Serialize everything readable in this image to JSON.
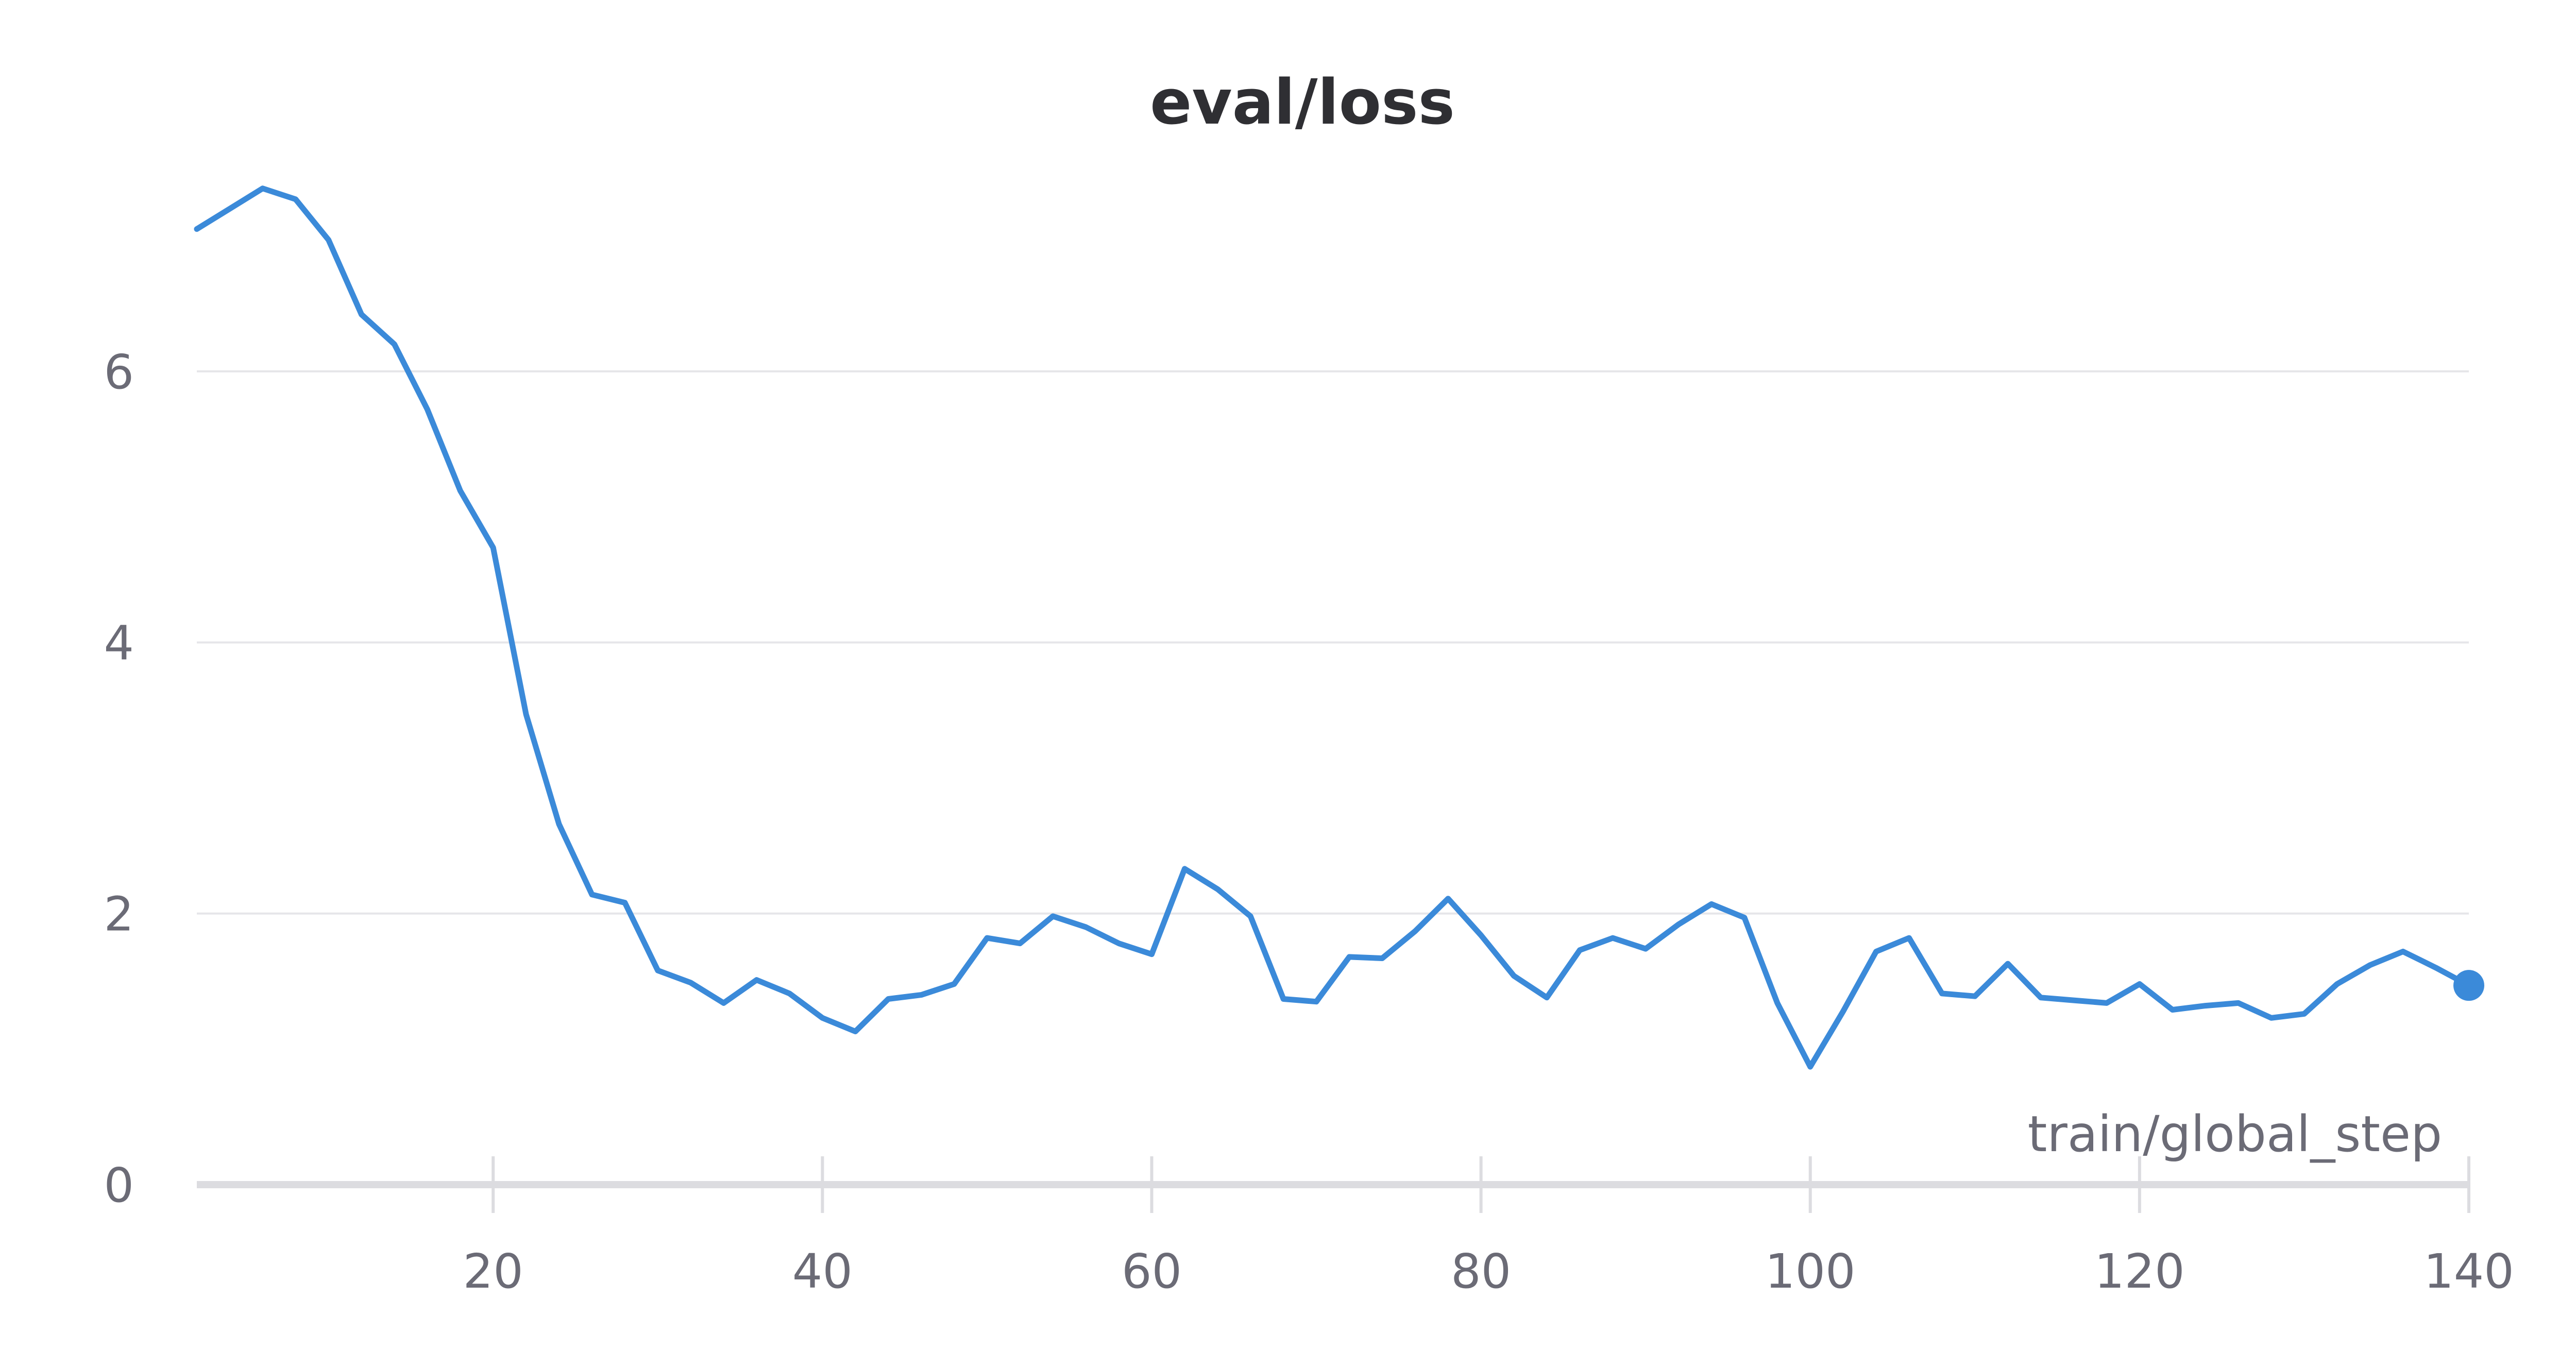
{
  "chart_data": {
    "type": "line",
    "title": "eval/loss",
    "xlabel": "train/global_step",
    "ylabel": "",
    "xlim": [
      2,
      140
    ],
    "ylim": [
      0,
      7.6
    ],
    "x_ticks": [
      20,
      40,
      60,
      80,
      100,
      120,
      140
    ],
    "y_ticks": [
      0,
      2,
      4,
      6
    ],
    "grid": true,
    "last_point_marker": true,
    "line_color": "#3b8ad9",
    "series": [
      {
        "x": [
          2,
          4,
          6,
          8,
          10,
          12,
          14,
          16,
          18,
          20,
          22,
          24,
          26,
          28,
          30,
          32,
          34,
          36,
          38,
          40,
          42,
          44,
          46,
          48,
          50,
          52,
          54,
          56,
          58,
          60,
          62,
          64,
          66,
          68,
          70,
          72,
          74,
          76,
          78,
          80,
          82,
          84,
          86,
          88,
          90,
          92,
          94,
          96,
          98,
          100,
          102,
          104,
          106,
          108,
          110,
          112,
          114,
          116,
          118,
          120,
          122,
          124,
          126,
          128,
          130,
          132,
          134,
          136,
          138,
          140
        ],
        "values": [
          7.05,
          7.2,
          7.35,
          7.27,
          6.97,
          6.42,
          6.2,
          5.72,
          5.12,
          4.7,
          3.47,
          2.66,
          2.14,
          2.08,
          1.58,
          1.49,
          1.34,
          1.51,
          1.41,
          1.23,
          1.13,
          1.37,
          1.4,
          1.48,
          1.82,
          1.78,
          1.98,
          1.9,
          1.78,
          1.7,
          2.33,
          2.18,
          1.98,
          1.37,
          1.35,
          1.68,
          1.67,
          1.87,
          2.11,
          1.84,
          1.54,
          1.38,
          1.73,
          1.82,
          1.74,
          1.92,
          2.07,
          1.97,
          1.34,
          0.87,
          1.28,
          1.72,
          1.82,
          1.41,
          1.39,
          1.63,
          1.38,
          1.36,
          1.34,
          1.48,
          1.29,
          1.32,
          1.34,
          1.23,
          1.26,
          1.48,
          1.62,
          1.72,
          1.6,
          1.47
        ]
      }
    ]
  }
}
